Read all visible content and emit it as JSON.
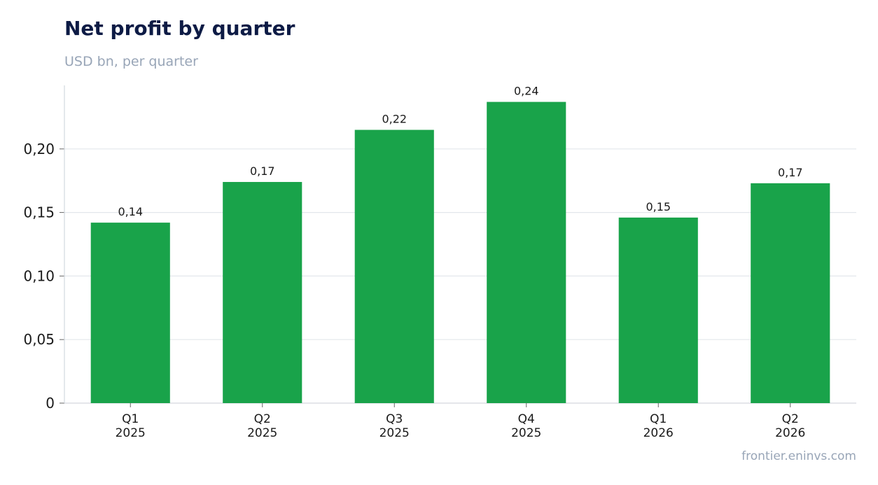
{
  "chart_data": {
    "type": "bar",
    "title": "Net profit by quarter",
    "subtitle": "USD bn, per quarter",
    "categories": [
      "Q1\n2025",
      "Q2\n2025",
      "Q3\n2025",
      "Q4\n2025",
      "Q1\n2026",
      "Q2\n2026"
    ],
    "values": [
      0.142,
      0.174,
      0.215,
      0.237,
      0.146,
      0.173
    ],
    "data_labels": [
      "0,14",
      "0,17",
      "0,22",
      "0,24",
      "0,15",
      "0,17"
    ],
    "yticks": [
      0,
      0.05,
      0.1,
      0.15,
      0.2
    ],
    "ytick_labels": [
      "0",
      "0,05",
      "0,10",
      "0,15",
      "0,20"
    ],
    "ylim": [
      0,
      0.25
    ],
    "grid": true,
    "colors": {
      "bar": "#19a34a",
      "grid": "#e3e7ec",
      "axis": "#d3d8de"
    }
  },
  "source": "frontier.eninvs.com"
}
